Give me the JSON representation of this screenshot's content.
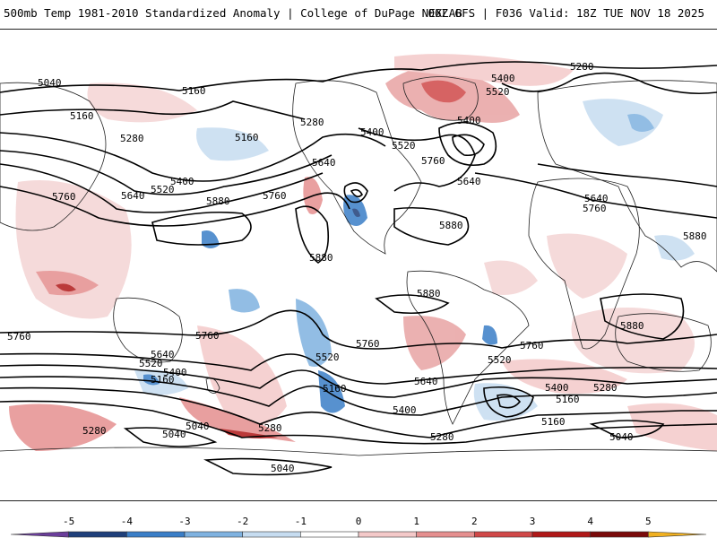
{
  "header": {
    "left_title": "500mb Temp 1981-2010 Standardized Anomaly | College of DuPage NEXLAB",
    "right_title": "06Z GFS | F036 Valid: 18Z TUE NOV 18 2025"
  },
  "contour_labels": {
    "l5040_a": "5040",
    "l5160_a": "5160",
    "l5160_b": "5160",
    "l5280_a": "5280",
    "l5160_c": "5160",
    "l5280_b": "5280",
    "l5400_a": "5400",
    "l5520_a": "5520",
    "l5640_a": "5640",
    "l5760_a": "5760",
    "l5880_a": "5880",
    "l5760_b": "5760",
    "l5640_b": "5640",
    "l5280_c": "5280",
    "l5400_b": "5400",
    "l5520_b": "5520",
    "l5400_c": "5400",
    "l5520_c": "5520",
    "l5640_c": "5640",
    "l5760_c": "5760",
    "l5880_b": "5880",
    "l5880_c": "5880",
    "l5880_d": "5880",
    "l5640_d": "5640",
    "l5760_d": "5760",
    "l5880_e": "5880",
    "l5880_f": "5880",
    "l5760_e": "5760",
    "l5760_f": "5760",
    "l5760_g": "5760",
    "l5640_e": "5640",
    "l5520_d": "5520",
    "l5400_d": "5400",
    "l5160_d": "5160",
    "l5760_h": "5760",
    "l5520_e": "5520",
    "l5160_e": "5160",
    "l5640_f": "5640",
    "l5400_e": "5400",
    "l5280_d": "5280",
    "l5040_b": "5040",
    "l5040_c": "5040",
    "l5280_e": "5280",
    "l5040_d": "5040",
    "l5520_f": "5520",
    "l5760_i": "5760",
    "l5400_f": "5400",
    "l5280_f": "5280",
    "l5160_f": "5160",
    "l5160_g": "5160",
    "l5040_e": "5040"
  },
  "colorbar": {
    "ticks": [
      "-5",
      "-4",
      "-3",
      "-2",
      "-1",
      "0",
      "1",
      "2",
      "3",
      "4",
      "5"
    ],
    "colors": [
      "#6a3d9a",
      "#1f3f7a",
      "#3a7ec7",
      "#7fb2e0",
      "#c6dcf0",
      "#ffffff",
      "#f4c9c9",
      "#e58f8f",
      "#d04848",
      "#b01818",
      "#7a0a0a",
      "#f0b020"
    ]
  }
}
